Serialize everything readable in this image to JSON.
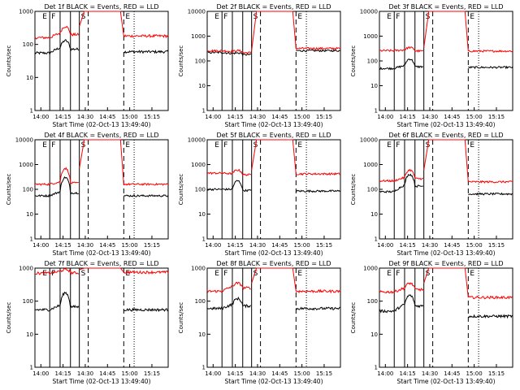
{
  "chart_data": {
    "type": "line",
    "yscale": "log",
    "ylim": [
      1,
      10000
    ],
    "xlim": [
      "13:56",
      "15:26"
    ],
    "xticks": [
      "14:00",
      "14:15",
      "14:30",
      "14:45",
      "15:00",
      "15:15"
    ],
    "yticks": [
      "1",
      "10",
      "100",
      "1000",
      "10000"
    ],
    "ylabel": "Counts/sec",
    "xlabel": "Start Time (02-Oct-13 13:49:40)",
    "series_styles": {
      "events": "#000000",
      "lld": "#ff0000"
    },
    "markers": [
      {
        "label": "E",
        "time": "14:00"
      },
      {
        "label": "F",
        "time": "14:06"
      },
      {
        "label": "S",
        "time": "14:26"
      },
      {
        "label": "E",
        "time": "14:56"
      }
    ],
    "solid_lines": [
      "14:06",
      "14:13",
      "14:20",
      "14:26"
    ],
    "dashed_lines": [
      "14:32",
      "14:56"
    ],
    "dotted_lines": [
      "15:03",
      "15:26"
    ],
    "panels": [
      {
        "title": "Det 1f BLACK = Events, RED = LLD",
        "yticks": [
          "1",
          "10",
          "100",
          "1000"
        ],
        "ymax": 1000,
        "events": {
          "base": 55,
          "t1": 80,
          "peak": 130,
          "after": 60
        },
        "lld": {
          "base": 160,
          "t1": 220,
          "peak": 350,
          "after": 180
        }
      },
      {
        "title": "Det 2f BLACK = Events, RED = LLD",
        "yticks": [
          "1",
          "10",
          "100",
          "1000",
          "10000"
        ],
        "ymax": 10000,
        "events": {
          "base": 220,
          "t1": 200,
          "peak": 210,
          "after": 260
        },
        "lld": {
          "base": 260,
          "t1": 240,
          "peak": 260,
          "after": 320
        }
      },
      {
        "title": "Det 3f BLACK = Events, RED = LLD",
        "yticks": [
          "1",
          "10",
          "100",
          "1000",
          "10000"
        ],
        "ymax": 10000,
        "events": {
          "base": 50,
          "t1": 65,
          "peak": 120,
          "after": 55
        },
        "lld": {
          "base": 260,
          "t1": 280,
          "peak": 350,
          "after": 250
        }
      },
      {
        "title": "Det 4f BLACK = Events, RED = LLD",
        "yticks": [
          "1",
          "10",
          "100",
          "1000",
          "10000"
        ],
        "ymax": 10000,
        "events": {
          "base": 55,
          "t1": 80,
          "peak": 300,
          "after": 55
        },
        "lld": {
          "base": 160,
          "t1": 200,
          "peak": 700,
          "after": 160
        }
      },
      {
        "title": "Det 5f BLACK = Events, RED = LLD",
        "yticks": [
          "1",
          "10",
          "100",
          "1000",
          "10000"
        ],
        "ymax": 10000,
        "events": {
          "base": 100,
          "t1": 100,
          "peak": 220,
          "after": 85
        },
        "lld": {
          "base": 450,
          "t1": 430,
          "peak": 600,
          "after": 420
        }
      },
      {
        "title": "Det 6f BLACK = Events, RED = LLD",
        "yticks": [
          "1",
          "10",
          "100",
          "1000",
          "10000"
        ],
        "ymax": 10000,
        "events": {
          "base": 80,
          "t1": 150,
          "peak": 400,
          "after": 65
        },
        "lld": {
          "base": 220,
          "t1": 300,
          "peak": 600,
          "after": 200
        }
      },
      {
        "title": "Det 7f BLACK = Events, RED = LLD",
        "yticks": [
          "1",
          "10",
          "100",
          "1000"
        ],
        "ymax": 1000,
        "events": {
          "base": 55,
          "t1": 75,
          "peak": 180,
          "after": 55
        },
        "lld": {
          "base": 700,
          "t1": 800,
          "peak": 900,
          "after": 750
        }
      },
      {
        "title": "Det 8f BLACK = Events, RED = LLD",
        "yticks": [
          "1",
          "10",
          "100",
          "1000"
        ],
        "ymax": 1000,
        "events": {
          "base": 60,
          "t1": 80,
          "peak": 120,
          "after": 60
        },
        "lld": {
          "base": 200,
          "t1": 280,
          "peak": 350,
          "after": 200
        }
      },
      {
        "title": "Det 9f BLACK = Events, RED = LLD",
        "yticks": [
          "1",
          "10",
          "100",
          "1000"
        ],
        "ymax": 1000,
        "events": {
          "base": 50,
          "t1": 80,
          "peak": 150,
          "after": 35
        },
        "lld": {
          "base": 190,
          "t1": 250,
          "peak": 350,
          "after": 130
        }
      }
    ]
  }
}
